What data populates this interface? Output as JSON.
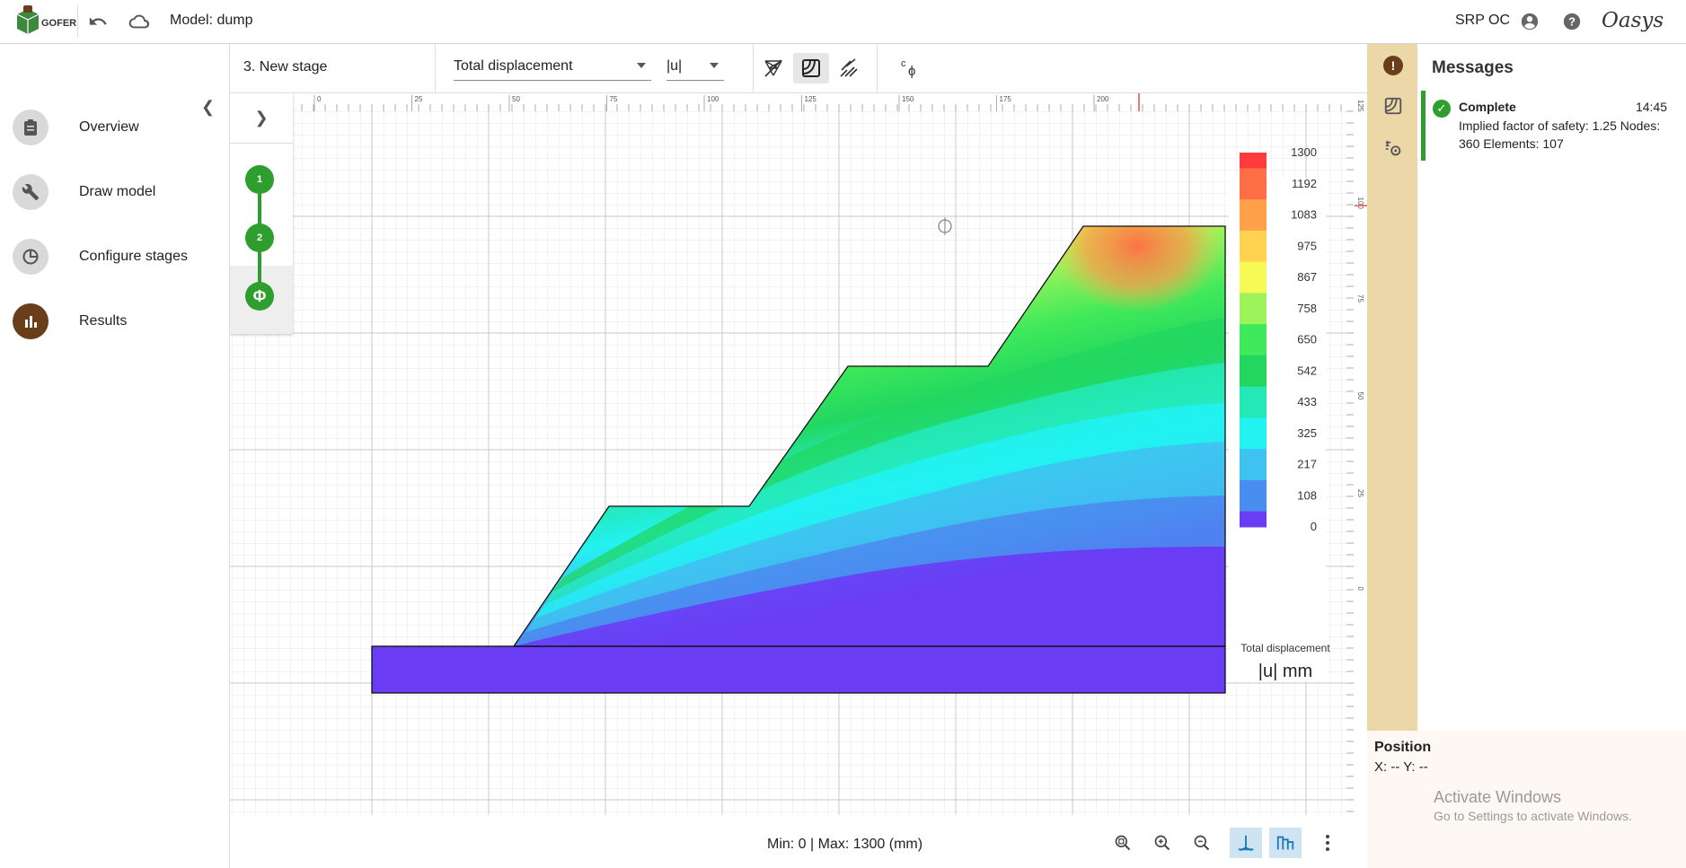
{
  "app": {
    "logo_text": "GOFER",
    "model_title": "Model: dump",
    "user": "SRP OC",
    "brand": "Oasys"
  },
  "nav": {
    "items": [
      {
        "label": "Overview",
        "icon": "clipboard-icon"
      },
      {
        "label": "Draw model",
        "icon": "wrench-icon"
      },
      {
        "label": "Configure stages",
        "icon": "pie-icon"
      },
      {
        "label": "Results",
        "icon": "bar-chart-icon",
        "active": true
      }
    ]
  },
  "toolbar": {
    "stage": "3. New stage",
    "result_type": "Total displacement",
    "component": "|u|"
  },
  "stages": {
    "items": [
      "1",
      "2",
      "Φ"
    ]
  },
  "ruler": {
    "top_ticks": [
      "0",
      "25",
      "50",
      "75",
      "100",
      "125",
      "150",
      "175",
      "200"
    ],
    "right_ticks": [
      "125",
      "100",
      "75",
      "50",
      "25",
      "0"
    ]
  },
  "legend": {
    "values": [
      "1300",
      "1192",
      "1083",
      "975",
      "867",
      "758",
      "650",
      "542",
      "433",
      "325",
      "217",
      "108",
      "0"
    ],
    "colors": [
      "#ff3b3b",
      "#ff6e45",
      "#ffa04a",
      "#ffd34f",
      "#f7fa54",
      "#9cf35a",
      "#3fe95a",
      "#22d760",
      "#24e8b6",
      "#22f2f2",
      "#3ec3f0",
      "#4a8df0",
      "#6a3df5"
    ],
    "title": "Total displacement",
    "unit": "|u| mm"
  },
  "status": {
    "minmax": "Min: 0 | Max: 1300 (mm)"
  },
  "messages": {
    "title": "Messages",
    "items": [
      {
        "status": "Complete",
        "time": "14:45",
        "text": "Implied factor of safety: 1.25 Nodes: 360 Elements: 107"
      }
    ]
  },
  "position": {
    "title": "Position",
    "value": "X: -- Y: --"
  },
  "watermark": {
    "line1": "Activate Windows",
    "line2": "Go to Settings to activate Windows."
  }
}
